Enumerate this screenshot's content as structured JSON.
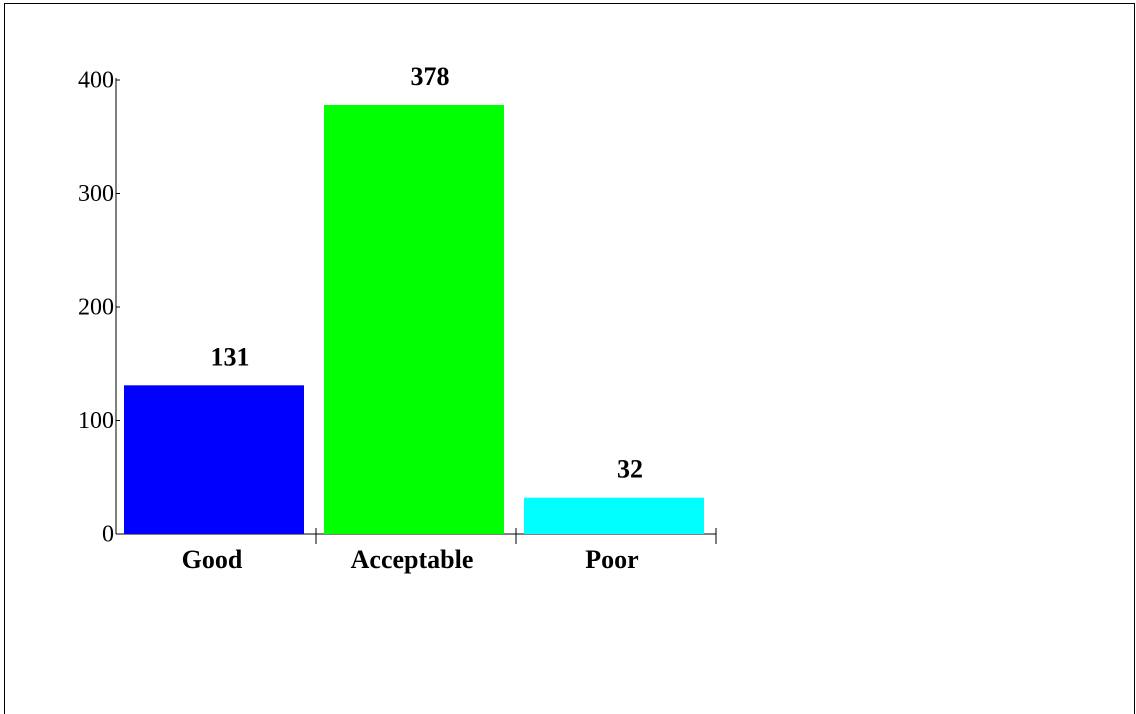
{
  "chart_data": {
    "type": "bar",
    "categories": [
      "Good",
      "Acceptable",
      "Poor"
    ],
    "values": [
      131,
      378,
      32
    ],
    "colors": [
      "#0000ff",
      "#00ff00",
      "#00ffff"
    ],
    "ylim": [
      0,
      400
    ],
    "yticks": [
      0,
      100,
      200,
      300,
      400
    ],
    "grid": false
  }
}
